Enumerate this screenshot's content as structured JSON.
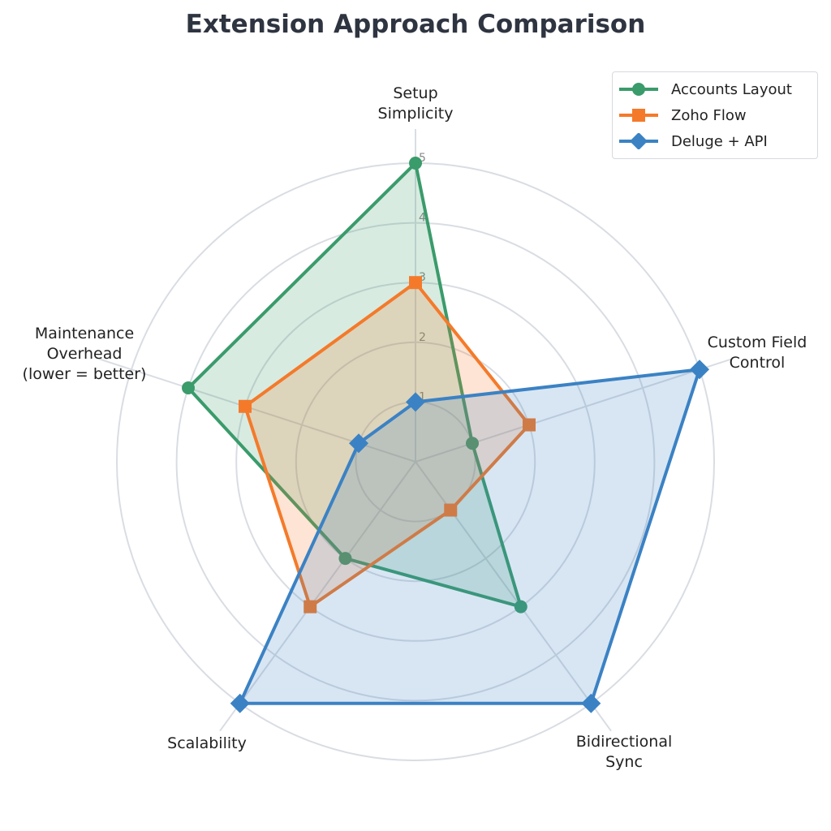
{
  "chart_data": {
    "type": "radar",
    "title": "Extension Approach Comparison",
    "axes": [
      [
        "Setup",
        "Simplicity"
      ],
      [
        "Custom Field",
        "Control"
      ],
      [
        "Bidirectional",
        "Sync"
      ],
      [
        "Scalability"
      ],
      [
        "Maintenance",
        "Overhead",
        "(lower = better)"
      ]
    ],
    "rlim": [
      0,
      5
    ],
    "rticks": [
      "1",
      "2",
      "3",
      "4",
      "5"
    ],
    "grid": true,
    "legend_position": "top-right",
    "series": [
      {
        "name": "Accounts Layout",
        "values": [
          5,
          1,
          3,
          2,
          4
        ],
        "color": "#3a9b6b",
        "marker": "circle"
      },
      {
        "name": "Zoho Flow",
        "values": [
          3,
          2,
          1,
          3,
          3
        ],
        "color": "#f47a2a",
        "marker": "square"
      },
      {
        "name": "Deluge + API",
        "values": [
          1,
          5,
          5,
          5,
          1
        ],
        "color": "#3b82c4",
        "marker": "diamond"
      }
    ]
  }
}
